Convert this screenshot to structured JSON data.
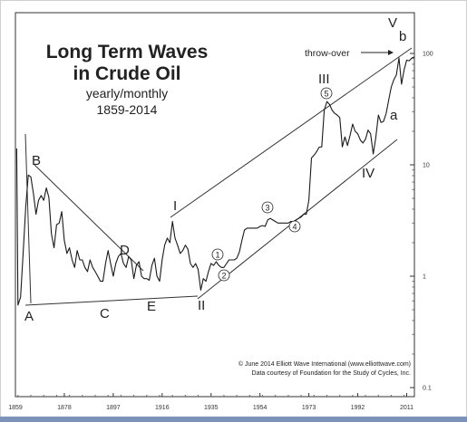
{
  "chart_data": {
    "type": "line",
    "title_lines": [
      "Long Term Waves",
      "in Crude Oil"
    ],
    "subtitle_lines": [
      "yearly/monthly",
      "1859-2014"
    ],
    "credit_lines": [
      "© June 2014 Elliott Wave International (www.elliottwave.com)",
      "Data courtesy of Foundation for the Study of Cycles, Inc."
    ],
    "x_ticks": [
      "1859",
      "1878",
      "1897",
      "1916",
      "1935",
      "1954",
      "1973",
      "1992",
      "2011"
    ],
    "y_ticks": [
      "0.1",
      "1",
      "10",
      "100"
    ],
    "y_scale": "log",
    "xlim": [
      1859,
      2014
    ],
    "ylim": [
      0.1,
      130
    ],
    "grid": false,
    "series": [
      {
        "x": [
          1859.5,
          1860,
          1861,
          1862,
          1863,
          1864,
          1865,
          1866,
          1867,
          1868,
          1869,
          1870,
          1871,
          1872,
          1873,
          1874,
          1875,
          1876,
          1877,
          1878,
          1879,
          1880,
          1881,
          1882,
          1883,
          1884,
          1885,
          1886,
          1887,
          1888,
          1889,
          1890,
          1891,
          1892,
          1893,
          1894,
          1895,
          1896,
          1897,
          1898,
          1899,
          1900,
          1901,
          1902,
          1903,
          1904,
          1905,
          1906,
          1907,
          1908,
          1909,
          1910,
          1911,
          1912,
          1913,
          1914,
          1915,
          1916,
          1917,
          1918,
          1919,
          1920,
          1921,
          1922,
          1923,
          1924,
          1925,
          1926,
          1927,
          1928,
          1929,
          1930,
          1931,
          1932,
          1933,
          1934,
          1935,
          1936,
          1937,
          1938,
          1939,
          1940,
          1941,
          1942,
          1943,
          1944,
          1945,
          1946,
          1947,
          1948,
          1949,
          1950,
          1951,
          1952,
          1953,
          1954,
          1955,
          1956,
          1957,
          1958,
          1959,
          1960,
          1961,
          1962,
          1963,
          1964,
          1965,
          1966,
          1967,
          1968,
          1969,
          1970,
          1971,
          1972,
          1973,
          1974,
          1975,
          1976,
          1977,
          1978,
          1979,
          1980,
          1981,
          1982,
          1983,
          1984,
          1985,
          1986,
          1987,
          1988,
          1989,
          1990,
          1991,
          1992,
          1993,
          1994,
          1995,
          1996,
          1997,
          1998,
          1999,
          2000,
          2001,
          2002,
          2003,
          2004,
          2005,
          2006,
          2007,
          2008,
          2009,
          2010,
          2011,
          2012,
          2013,
          2014
        ],
        "y": [
          14,
          0.55,
          0.65,
          1.6,
          4.2,
          8.1,
          7.8,
          5.5,
          3.6,
          4.8,
          5.3,
          4.8,
          6.2,
          5.1,
          2.4,
          1.8,
          2.9,
          3.0,
          3.8,
          2.1,
          1.6,
          1.8,
          1.4,
          1.2,
          1.7,
          1.4,
          1.4,
          1.2,
          1.1,
          1.4,
          1.2,
          1.1,
          1.0,
          0.9,
          0.9,
          1.3,
          1.7,
          1.3,
          1.0,
          1.3,
          1.5,
          1.6,
          1.3,
          1.2,
          1.5,
          1.4,
          0.95,
          1.25,
          1.35,
          1.0,
          0.95,
          0.95,
          0.92,
          1.25,
          1.45,
          1.0,
          0.9,
          1.4,
          1.9,
          2.2,
          2.0,
          3.1,
          2.2,
          1.9,
          1.6,
          1.7,
          1.9,
          1.75,
          1.3,
          1.2,
          1.3,
          1.15,
          0.75,
          0.95,
          0.9,
          1.1,
          1.3,
          1.25,
          1.35,
          1.25,
          1.2,
          1.2,
          1.3,
          1.4,
          1.4,
          1.4,
          1.45,
          1.65,
          2.1,
          2.6,
          2.7,
          2.7,
          2.7,
          2.7,
          2.7,
          2.8,
          2.85,
          2.8,
          3.2,
          3.3,
          3.2,
          3.1,
          3.0,
          3.0,
          3.0,
          3.0,
          3.0,
          3.1,
          3.1,
          3.2,
          3.3,
          3.4,
          3.6,
          3.6,
          4.8,
          11.5,
          12.2,
          13.1,
          14.4,
          14.5,
          31,
          37,
          35,
          31,
          29,
          28,
          26.5,
          14.5,
          17.8,
          14.9,
          18.3,
          23.2,
          20,
          19,
          16.7,
          15.7,
          17,
          20.5,
          19,
          12.5,
          17.5,
          28,
          24,
          24.5,
          28.8,
          38,
          50,
          58,
          64,
          91,
          53,
          71,
          87,
          86,
          91,
          93
        ]
      }
    ],
    "annotations": {
      "waves": [
        "A",
        "B",
        "C",
        "D",
        "E",
        "I",
        "II",
        "III",
        "IV",
        "V",
        "a",
        "b"
      ],
      "circled": [
        "1",
        "2",
        "3",
        "4",
        "5"
      ],
      "throw_over": "throw-over"
    }
  }
}
